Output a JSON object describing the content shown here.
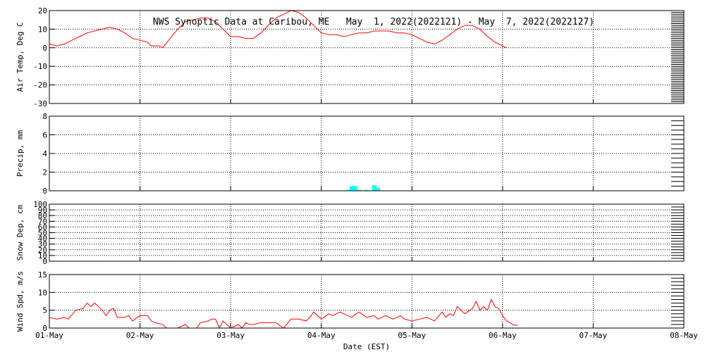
{
  "chart_data": {
    "type": "line",
    "title": "NWS Synoptic Data at Caribou, ME   May  1, 2022(2022121) - May  7, 2022(2022127)",
    "xlabel": "Date (EST)",
    "x_domain": [
      "2022-05-01T00:00",
      "2022-05-08T00:00"
    ],
    "x_ticks": [
      "01-May",
      "02-May",
      "03-May",
      "04-May",
      "05-May",
      "06-May",
      "07-May",
      "08-May"
    ],
    "grid": true,
    "colors": {
      "line": "#ff0000",
      "precip": "#00ffff",
      "grid": "#000000",
      "frame": "#000000"
    },
    "panels": [
      {
        "id": "air-temp",
        "type": "line",
        "ylabel": "Air Temp, Deg C",
        "ylim": [
          -30,
          20
        ],
        "yticks": [
          -30,
          -20,
          -10,
          0,
          10,
          20
        ],
        "color": "#ff0000",
        "points": [
          [
            "2022-05-01T00:00",
            2
          ],
          [
            "2022-05-01T02:00",
            1
          ],
          [
            "2022-05-01T04:00",
            2
          ],
          [
            "2022-05-01T06:00",
            4
          ],
          [
            "2022-05-01T08:00",
            6
          ],
          [
            "2022-05-01T10:00",
            8
          ],
          [
            "2022-05-01T12:00",
            9
          ],
          [
            "2022-05-01T14:00",
            10
          ],
          [
            "2022-05-01T16:00",
            11
          ],
          [
            "2022-05-01T18:00",
            10
          ],
          [
            "2022-05-01T20:00",
            8
          ],
          [
            "2022-05-01T22:00",
            5
          ],
          [
            "2022-05-02T00:00",
            4
          ],
          [
            "2022-05-02T02:00",
            3
          ],
          [
            "2022-05-02T03:00",
            1
          ],
          [
            "2022-05-02T05:00",
            1
          ],
          [
            "2022-05-02T06:00",
            0
          ],
          [
            "2022-05-02T08:00",
            5
          ],
          [
            "2022-05-02T10:00",
            10
          ],
          [
            "2022-05-02T12:00",
            14
          ],
          [
            "2022-05-02T14:00",
            15
          ],
          [
            "2022-05-02T16:00",
            16
          ],
          [
            "2022-05-02T18:00",
            16
          ],
          [
            "2022-05-02T20:00",
            14
          ],
          [
            "2022-05-02T22:00",
            10
          ],
          [
            "2022-05-03T00:00",
            6
          ],
          [
            "2022-05-03T02:00",
            6
          ],
          [
            "2022-05-03T04:00",
            5
          ],
          [
            "2022-05-03T06:00",
            5
          ],
          [
            "2022-05-03T08:00",
            8
          ],
          [
            "2022-05-03T10:00",
            12
          ],
          [
            "2022-05-03T12:00",
            16
          ],
          [
            "2022-05-03T14:00",
            18
          ],
          [
            "2022-05-03T16:00",
            20
          ],
          [
            "2022-05-03T18:00",
            19
          ],
          [
            "2022-05-03T20:00",
            16
          ],
          [
            "2022-05-03T22:00",
            12
          ],
          [
            "2022-05-04T00:00",
            8
          ],
          [
            "2022-05-04T02:00",
            7
          ],
          [
            "2022-05-04T04:00",
            7
          ],
          [
            "2022-05-04T06:00",
            6
          ],
          [
            "2022-05-04T08:00",
            7
          ],
          [
            "2022-05-04T10:00",
            8
          ],
          [
            "2022-05-04T12:00",
            8
          ],
          [
            "2022-05-04T14:00",
            9
          ],
          [
            "2022-05-04T16:00",
            9
          ],
          [
            "2022-05-04T18:00",
            9
          ],
          [
            "2022-05-04T20:00",
            8
          ],
          [
            "2022-05-04T22:00",
            8
          ],
          [
            "2022-05-05T00:00",
            7
          ],
          [
            "2022-05-05T02:00",
            5
          ],
          [
            "2022-05-05T04:00",
            3
          ],
          [
            "2022-05-05T06:00",
            2
          ],
          [
            "2022-05-05T08:00",
            4
          ],
          [
            "2022-05-05T10:00",
            7
          ],
          [
            "2022-05-05T12:00",
            10
          ],
          [
            "2022-05-05T14:00",
            12
          ],
          [
            "2022-05-05T16:00",
            12
          ],
          [
            "2022-05-05T18:00",
            10
          ],
          [
            "2022-05-05T20:00",
            6
          ],
          [
            "2022-05-05T22:00",
            3
          ],
          [
            "2022-05-06T00:00",
            1
          ],
          [
            "2022-05-06T01:00",
            0
          ]
        ]
      },
      {
        "id": "precip",
        "type": "bar",
        "ylabel": "Precip, mm",
        "ylim": [
          0,
          8
        ],
        "yticks": [
          0,
          2,
          4,
          6,
          8
        ],
        "color": "#00ffff",
        "bars": [
          [
            "2022-05-04T07:00",
            0.1
          ],
          [
            "2022-05-04T08:00",
            0.5
          ],
          [
            "2022-05-04T09:00",
            0.5
          ],
          [
            "2022-05-04T10:00",
            0.1
          ],
          [
            "2022-05-04T12:00",
            0.1
          ],
          [
            "2022-05-04T14:00",
            0.6
          ],
          [
            "2022-05-04T15:00",
            0.3
          ]
        ]
      },
      {
        "id": "snow-depth",
        "type": "line",
        "ylabel": "Snow Dep, cm",
        "ylim": [
          0,
          100
        ],
        "yticks": [
          0,
          10,
          20,
          30,
          40,
          50,
          60,
          70,
          80,
          90,
          100
        ],
        "color": "#ff0000",
        "points": []
      },
      {
        "id": "wind-speed",
        "type": "line",
        "ylabel": "Wind Spd, m/s",
        "ylim": [
          0,
          15
        ],
        "yticks": [
          0,
          5,
          10,
          15
        ],
        "color": "#ff0000",
        "points": [
          [
            "2022-05-01T00:00",
            3
          ],
          [
            "2022-05-01T02:00",
            2.5
          ],
          [
            "2022-05-01T04:00",
            3
          ],
          [
            "2022-05-01T05:00",
            2.5
          ],
          [
            "2022-05-01T07:00",
            5
          ],
          [
            "2022-05-01T09:00",
            5.5
          ],
          [
            "2022-05-01T10:00",
            7
          ],
          [
            "2022-05-01T11:00",
            6
          ],
          [
            "2022-05-01T12:00",
            7
          ],
          [
            "2022-05-01T14:00",
            5
          ],
          [
            "2022-05-01T15:00",
            3.5
          ],
          [
            "2022-05-01T16:00",
            5
          ],
          [
            "2022-05-01T17:00",
            5.5
          ],
          [
            "2022-05-01T18:00",
            3
          ],
          [
            "2022-05-01T20:00",
            3
          ],
          [
            "2022-05-01T21:00",
            3.5
          ],
          [
            "2022-05-01T22:00",
            2
          ],
          [
            "2022-05-02T00:00",
            3.5
          ],
          [
            "2022-05-02T02:00",
            3.5
          ],
          [
            "2022-05-02T03:00",
            2
          ],
          [
            "2022-05-02T04:00",
            1.5
          ],
          [
            "2022-05-02T06:00",
            1
          ],
          [
            "2022-05-02T07:00",
            0
          ],
          [
            "2022-05-02T10:00",
            0
          ],
          [
            "2022-05-02T12:00",
            1
          ],
          [
            "2022-05-02T13:00",
            0
          ],
          [
            "2022-05-02T15:00",
            0
          ],
          [
            "2022-05-02T16:00",
            1.5
          ],
          [
            "2022-05-02T18:00",
            2
          ],
          [
            "2022-05-02T19:00",
            2.5
          ],
          [
            "2022-05-02T20:00",
            2.5
          ],
          [
            "2022-05-02T21:00",
            0
          ],
          [
            "2022-05-02T22:00",
            2
          ],
          [
            "2022-05-03T00:00",
            0
          ],
          [
            "2022-05-03T02:00",
            1
          ],
          [
            "2022-05-03T03:00",
            0
          ],
          [
            "2022-05-03T04:00",
            1.5
          ],
          [
            "2022-05-03T05:00",
            1
          ],
          [
            "2022-05-03T06:00",
            1
          ],
          [
            "2022-05-03T08:00",
            1.5
          ],
          [
            "2022-05-03T10:00",
            1.5
          ],
          [
            "2022-05-03T12:00",
            1.5
          ],
          [
            "2022-05-03T14:00",
            0
          ],
          [
            "2022-05-03T16:00",
            2.5
          ],
          [
            "2022-05-03T18:00",
            2.5
          ],
          [
            "2022-05-03T20:00",
            2
          ],
          [
            "2022-05-03T21:00",
            3
          ],
          [
            "2022-05-03T22:00",
            4.5
          ],
          [
            "2022-05-04T00:00",
            2.5
          ],
          [
            "2022-05-04T02:00",
            4
          ],
          [
            "2022-05-04T03:00",
            3.5
          ],
          [
            "2022-05-04T05:00",
            4.5
          ],
          [
            "2022-05-04T07:00",
            3.5
          ],
          [
            "2022-05-04T08:00",
            3
          ],
          [
            "2022-05-04T10:00",
            4.5
          ],
          [
            "2022-05-04T12:00",
            3
          ],
          [
            "2022-05-04T14:00",
            3.5
          ],
          [
            "2022-05-04T15:00",
            2.5
          ],
          [
            "2022-05-04T17:00",
            3.5
          ],
          [
            "2022-05-04T19:00",
            2.5
          ],
          [
            "2022-05-04T21:00",
            3.5
          ],
          [
            "2022-05-04T22:00",
            2.5
          ],
          [
            "2022-05-05T00:00",
            2
          ],
          [
            "2022-05-05T02:00",
            2.5
          ],
          [
            "2022-05-05T04:00",
            3
          ],
          [
            "2022-05-05T06:00",
            2
          ],
          [
            "2022-05-05T08:00",
            4.5
          ],
          [
            "2022-05-05T09:00",
            3
          ],
          [
            "2022-05-05T10:00",
            4
          ],
          [
            "2022-05-05T11:00",
            3.5
          ],
          [
            "2022-05-05T12:00",
            6
          ],
          [
            "2022-05-05T13:00",
            5
          ],
          [
            "2022-05-05T14:00",
            4
          ],
          [
            "2022-05-05T16:00",
            5.5
          ],
          [
            "2022-05-05T17:00",
            7.5
          ],
          [
            "2022-05-05T18:00",
            5
          ],
          [
            "2022-05-05T19:00",
            6
          ],
          [
            "2022-05-05T20:00",
            5
          ],
          [
            "2022-05-05T21:00",
            8
          ],
          [
            "2022-05-05T22:00",
            6
          ],
          [
            "2022-05-05T23:00",
            5.5
          ],
          [
            "2022-05-06T00:00",
            3.5
          ],
          [
            "2022-05-06T01:00",
            2
          ],
          [
            "2022-05-06T02:00",
            1.5
          ],
          [
            "2022-05-06T03:00",
            0.8
          ],
          [
            "2022-05-06T04:00",
            0.8
          ]
        ]
      }
    ]
  }
}
